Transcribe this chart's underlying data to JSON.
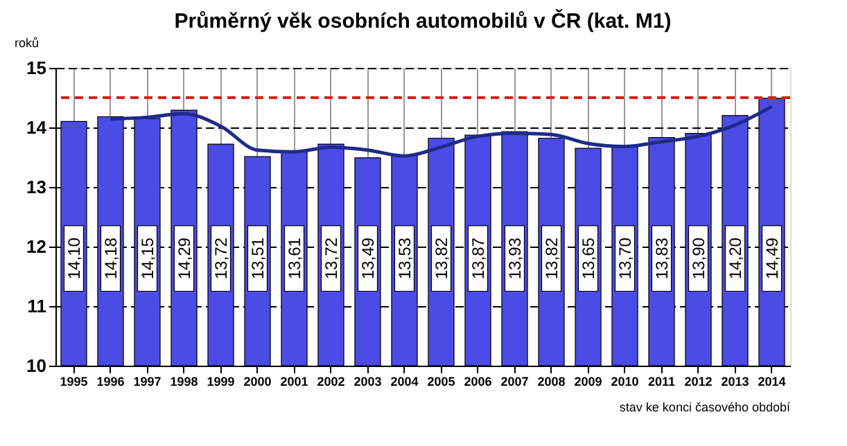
{
  "chart_data": {
    "type": "bar",
    "title": "Průměrný věk osobních automobilů v ČR (kat. M1)",
    "ylabel": "roků",
    "categories": [
      "1995",
      "1996",
      "1997",
      "1998",
      "1999",
      "2000",
      "2001",
      "2002",
      "2003",
      "2004",
      "2005",
      "2006",
      "2007",
      "2008",
      "2009",
      "2010",
      "2011",
      "2012",
      "2013",
      "2014"
    ],
    "series": [
      {
        "color": "#4b4be6",
        "values": [
          14.1,
          14.18,
          14.15,
          14.29,
          13.72,
          13.51,
          13.61,
          13.72,
          13.49,
          13.53,
          13.82,
          13.87,
          13.93,
          13.82,
          13.65,
          13.7,
          13.83,
          13.9,
          14.2,
          14.49
        ],
        "value_labels": [
          "14,10",
          "14,18",
          "14,15",
          "14,29",
          "13,72",
          "13,51",
          "13,61",
          "13,72",
          "13,49",
          "13,53",
          "13,82",
          "13,87",
          "13,93",
          "13,82",
          "13,65",
          "13,70",
          "13,83",
          "13,90",
          "14,20",
          "14,49"
        ]
      },
      {
        "type": "line",
        "color": "#1f2a8a",
        "values": [
          null,
          14.14,
          14.17,
          14.23,
          14.02,
          13.62,
          13.59,
          13.67,
          13.62,
          13.52,
          13.67,
          13.85,
          13.9,
          13.88,
          13.73,
          13.68,
          13.76,
          13.85,
          14.04,
          14.35
        ]
      }
    ],
    "ylim": [
      10,
      15
    ],
    "yticks": [
      10,
      11,
      12,
      13,
      14,
      15
    ],
    "grid": true,
    "ref_lines": [
      {
        "axis": "y",
        "value": 14.5,
        "color": "#d62020",
        "line_style": "dashed"
      }
    ],
    "annotations": [
      "stav ke konci časového období"
    ]
  }
}
